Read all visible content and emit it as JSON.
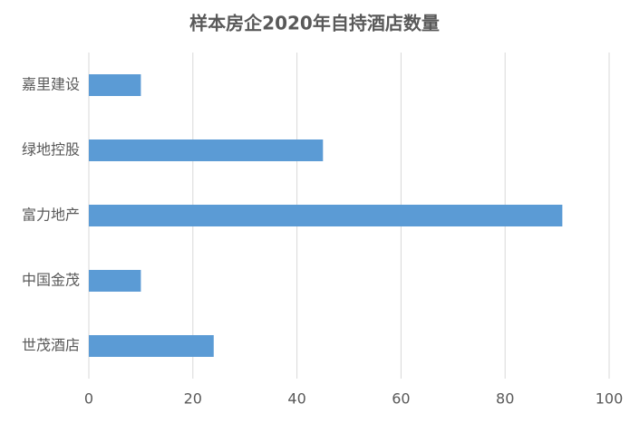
{
  "chart_data": {
    "type": "bar",
    "orientation": "horizontal",
    "title": "样本房企2020年自持酒店数量",
    "categories": [
      "嘉里建设",
      "绿地控股",
      "富力地产",
      "中国金茂",
      "世茂酒店"
    ],
    "values": [
      10,
      45,
      91,
      10,
      24
    ],
    "color": "#5b9bd5",
    "xlim": [
      0,
      100
    ],
    "xticks": [
      0,
      20,
      40,
      60,
      80,
      100
    ],
    "grid": true
  }
}
